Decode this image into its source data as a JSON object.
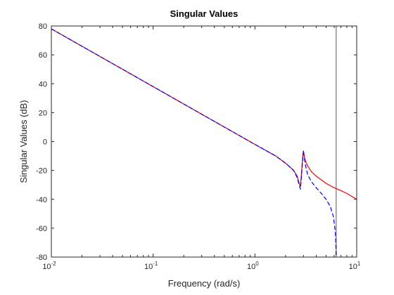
{
  "chart_data": {
    "type": "line",
    "title": "Singular Values",
    "xlabel": "Frequency (rad/s)",
    "ylabel": "Singular Values (dB)",
    "x_scale": "log",
    "xlim": [
      0.01,
      10
    ],
    "ylim": [
      -80,
      80
    ],
    "x_ticks": [
      {
        "value": 0.01,
        "base": "10",
        "exp": "-2"
      },
      {
        "value": 0.1,
        "base": "10",
        "exp": "-1"
      },
      {
        "value": 1,
        "base": "10",
        "exp": "0"
      },
      {
        "value": 10,
        "base": "10",
        "exp": "1"
      }
    ],
    "y_ticks": [
      {
        "value": -80,
        "label": "-80"
      },
      {
        "value": -60,
        "label": "-60"
      },
      {
        "value": -40,
        "label": "-40"
      },
      {
        "value": -20,
        "label": "-20"
      },
      {
        "value": 0,
        "label": "0"
      },
      {
        "value": 20,
        "label": "20"
      },
      {
        "value": 40,
        "label": "40"
      },
      {
        "value": 60,
        "label": "60"
      },
      {
        "value": 80,
        "label": "80"
      }
    ],
    "grid": false,
    "series": [
      {
        "color": "#ff0000",
        "style": "solid",
        "x": [
          0.01,
          0.1,
          1,
          1.6,
          2.0,
          2.4,
          2.6,
          2.72,
          2.8,
          2.88,
          2.95,
          3.0,
          3.05,
          3.15,
          3.3,
          3.6,
          4.0,
          5.0,
          6.0,
          7.0,
          8.0,
          10.0
        ],
        "y": [
          78,
          38,
          -2,
          -10,
          -15,
          -20,
          -24,
          -29,
          -31,
          -20,
          -10,
          -7,
          -10,
          -14,
          -17,
          -21,
          -24,
          -29,
          -32,
          -34,
          -36,
          -40
        ]
      },
      {
        "color": "#0000ff",
        "style": "dashed",
        "x": [
          0.01,
          0.1,
          1,
          1.6,
          2.0,
          2.4,
          2.6,
          2.72,
          2.8,
          2.88,
          2.95,
          3.0,
          3.05,
          3.15,
          3.3,
          3.6,
          4.0,
          4.5,
          5.0,
          5.5,
          5.9,
          6.15,
          6.25,
          6.28
        ],
        "y": [
          78,
          38,
          -2,
          -10,
          -15,
          -20,
          -25,
          -30,
          -33,
          -22,
          -12,
          -6,
          -11,
          -17,
          -23,
          -28,
          -32,
          -36,
          -40,
          -45,
          -52,
          -62,
          -72,
          -80
        ]
      }
    ],
    "markers": [
      {
        "type": "vertical-line",
        "x": 6.28,
        "color": "#a6a6a6"
      }
    ]
  }
}
